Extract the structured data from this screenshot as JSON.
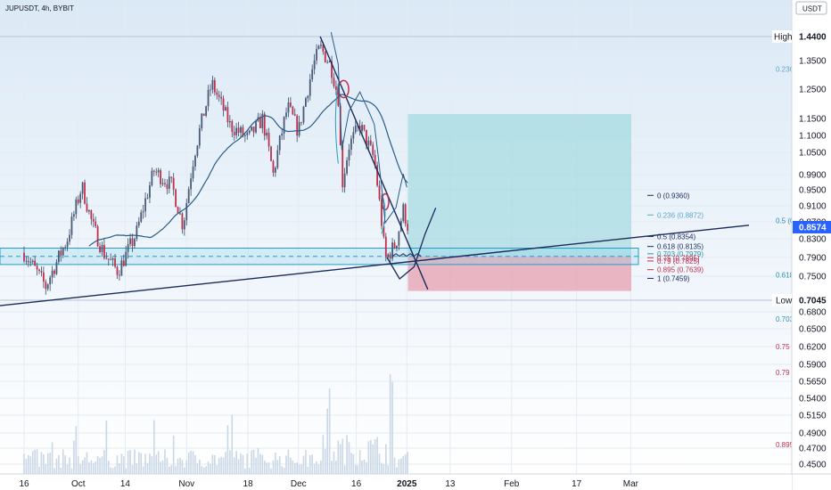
{
  "header": {
    "symbol_line": "JUPUSDT, 4h, BYBIT"
  },
  "currency_badge": "USDT",
  "colors": {
    "background_top": "#dbe9f6",
    "background_bottom": "#ffffff",
    "candle_up": "#4a5a79",
    "candle_down": "#c0304a",
    "wick": "#3a4a66",
    "ma_line": "#2a5c8a",
    "trend_line": "#1c2b5a",
    "zone_stroke": "#2a9bc4",
    "zone_fill": "#7fd0e6",
    "tp_fill": "#8fd3d9",
    "sl_fill": "#e69aa9",
    "fib_blue": "#2a8fb0",
    "fib_red": "#c0304a",
    "volume": "#c9d7e6"
  },
  "high_label": {
    "text": "High",
    "value": "1.4400"
  },
  "low_label": {
    "text": "Low",
    "value": "0.7045"
  },
  "price_badge": "0.8574",
  "chart_data": {
    "type": "candlestick",
    "x_ticks": [
      "16",
      "Oct",
      "14",
      "Nov",
      "18",
      "Dec",
      "16",
      "2025",
      "13",
      "Feb",
      "17",
      "Mar"
    ],
    "y_ticks": [
      "1.3500",
      "1.2500",
      "1.1500",
      "1.1000",
      "1.0500",
      "0.9900",
      "0.9500",
      "0.9100",
      "0.8700",
      "0.8300",
      "0.7900",
      "0.7500",
      "0.6800",
      "0.6500",
      "0.6200",
      "0.5900",
      "0.5650",
      "0.5400",
      "0.5150",
      "0.4900",
      "0.4700",
      "0.4500"
    ],
    "ylim": [
      0.44,
      1.5
    ],
    "fib_right": [
      {
        "label": "0 (0.9360)",
        "value": 0.936,
        "color": "#1c2b5a"
      },
      {
        "label": "0.236 (0.8872)",
        "value": 0.8872,
        "color": "#5aa9c8"
      },
      {
        "label": "0.5 (0.8354)",
        "value": 0.8354,
        "color": "#1c2b5a"
      },
      {
        "label": "0.618 (0.8135)",
        "value": 0.8135,
        "color": "#1c2b5a"
      },
      {
        "label": "0.703 (0.7979)",
        "value": 0.7979,
        "color": "#2a8fb0"
      },
      {
        "label": "0.75 (0.7895)",
        "value": 0.7895,
        "color": "#c0304a"
      },
      {
        "label": "0.79 (0.7825)",
        "value": 0.7825,
        "color": "#c0304a"
      },
      {
        "label": "0.895 (0.7639)",
        "value": 0.7639,
        "color": "#c0304a"
      },
      {
        "label": "1 (0.7459)",
        "value": 0.7459,
        "color": "#1c2b5a"
      }
    ],
    "fib_left": [
      {
        "label": "0.236",
        "value": 1.32,
        "color": "#5aa9c8"
      },
      {
        "label": "0.5 (0",
        "value": 0.8735,
        "color": "#2a8fb0"
      },
      {
        "label": "0.618",
        "value": 0.753,
        "color": "#2a8fb0"
      },
      {
        "label": "0.703",
        "value": 0.667,
        "color": "#2a8fb0"
      },
      {
        "label": "0.75 (",
        "value": 0.62,
        "color": "#c0304a"
      },
      {
        "label": "0.79 (",
        "value": 0.578,
        "color": "#c0304a"
      },
      {
        "label": "0.895",
        "value": 0.475,
        "color": "#c0304a"
      }
    ],
    "key_levels": {
      "high": 1.44,
      "low": 0.7045,
      "last": 0.8574,
      "zone_top": 0.81,
      "zone_bottom": 0.775,
      "zone_mid": 0.7925
    },
    "anchors": [
      {
        "day": 0,
        "price": 0.8
      },
      {
        "day": 6,
        "price": 0.73
      },
      {
        "day": 12,
        "price": 0.83
      },
      {
        "day": 16,
        "price": 0.96
      },
      {
        "day": 19,
        "price": 0.86
      },
      {
        "day": 22,
        "price": 0.8
      },
      {
        "day": 26,
        "price": 0.76
      },
      {
        "day": 31,
        "price": 0.84
      },
      {
        "day": 36,
        "price": 1.0
      },
      {
        "day": 41,
        "price": 0.96
      },
      {
        "day": 44,
        "price": 0.86
      },
      {
        "day": 47,
        "price": 1.04
      },
      {
        "day": 52,
        "price": 1.27
      },
      {
        "day": 57,
        "price": 1.13
      },
      {
        "day": 62,
        "price": 1.09
      },
      {
        "day": 66,
        "price": 1.15
      },
      {
        "day": 69,
        "price": 0.99
      },
      {
        "day": 73,
        "price": 1.19
      },
      {
        "day": 76,
        "price": 1.11
      },
      {
        "day": 80,
        "price": 1.33
      },
      {
        "day": 82,
        "price": 1.4
      },
      {
        "day": 85,
        "price": 1.33
      },
      {
        "day": 87,
        "price": 1.22
      },
      {
        "day": 88,
        "price": 0.96
      },
      {
        "day": 90,
        "price": 1.07
      },
      {
        "day": 93,
        "price": 1.13
      },
      {
        "day": 97,
        "price": 1.03
      },
      {
        "day": 99,
        "price": 0.87
      },
      {
        "day": 100,
        "price": 0.785
      },
      {
        "day": 103,
        "price": 0.82
      },
      {
        "day": 105,
        "price": 0.9
      },
      {
        "day": 106.3,
        "price": 0.8574
      }
    ],
    "projection_curve": [
      {
        "day": 100.5,
        "price": 0.79
      },
      {
        "day": 104,
        "price": 0.745
      },
      {
        "day": 108,
        "price": 0.77
      },
      {
        "day": 111,
        "price": 0.84
      },
      {
        "day": 114,
        "price": 0.905
      }
    ],
    "ellipses": [
      {
        "day": 88.5,
        "price": 1.25,
        "rx_days": 1.4,
        "ry_price": 0.03
      },
      {
        "day": 100,
        "price": 0.92,
        "rx_days": 1.0,
        "ry_price": 0.02
      }
    ]
  }
}
